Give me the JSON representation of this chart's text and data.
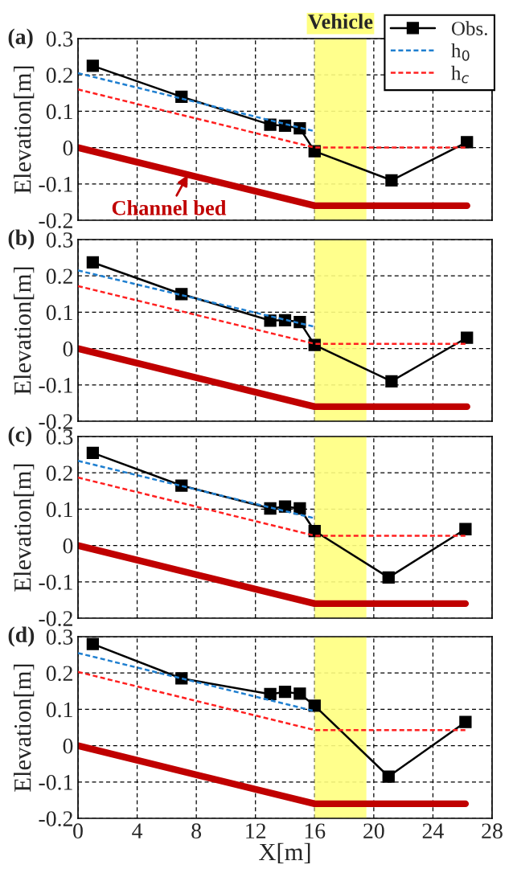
{
  "chart_data": [
    {
      "type": "line",
      "title": "(a)",
      "ylabel": "Elevation[m]",
      "xlim": [
        0,
        28
      ],
      "xticks": [
        0,
        4,
        8,
        12,
        16,
        20,
        24,
        28
      ],
      "ylim": [
        -0.2,
        0.3
      ],
      "yticks": [
        -0.2,
        -0.1,
        0,
        0.1,
        0.2,
        0.3
      ],
      "grid": true,
      "legend": "top right",
      "tick_labels": "y",
      "series": [
        {
          "name": "Obs.",
          "color": "#000000",
          "marker": "square",
          "line_style": "solid",
          "x": [
            1,
            7,
            13,
            14,
            15,
            16,
            21.2,
            26.3
          ],
          "values": [
            0.225,
            0.14,
            0.063,
            0.06,
            0.053,
            -0.01,
            -0.09,
            0.015
          ]
        },
        {
          "name": "h$_{0}$",
          "color": "#1f7fd0",
          "marker": "none",
          "line_style": "dashed",
          "x": [
            0,
            16
          ],
          "values": [
            0.205,
            0.045
          ]
        },
        {
          "name": "h$_{c}$",
          "color": "#ff2020",
          "marker": "none",
          "line_style": "dashed",
          "x": [
            0,
            16,
            26.3
          ],
          "values": [
            0.16,
            0.0,
            0.0
          ]
        },
        {
          "color": "#c00000",
          "marker": "none",
          "line_style": "solid",
          "x": [
            0,
            16,
            26.3
          ],
          "values": [
            0,
            -0.16,
            -0.16
          ]
        }
      ],
      "bands": [
        {
          "axis": "x",
          "from": 16,
          "to": 19.5,
          "label": "Vehicle",
          "color": "#ffff80"
        }
      ],
      "annotations": [
        {
          "text": "Channel bed",
          "x": 7.5,
          "y": -0.07
        }
      ]
    },
    {
      "type": "line",
      "title": "(b)",
      "ylabel": "Elevation[m]",
      "xlim": [
        0,
        28
      ],
      "xticks": [
        0,
        4,
        8,
        12,
        16,
        20,
        24,
        28
      ],
      "ylim": [
        -0.2,
        0.3
      ],
      "yticks": [
        -0.2,
        -0.1,
        0,
        0.1,
        0.2,
        0.3
      ],
      "grid": true,
      "tick_labels": "y",
      "series": [
        {
          "color": "#000000",
          "marker": "square",
          "line_style": "solid",
          "x": [
            1,
            7,
            13,
            14,
            15,
            16,
            21.2,
            26.3
          ],
          "values": [
            0.237,
            0.15,
            0.077,
            0.078,
            0.073,
            0.01,
            -0.09,
            0.03
          ]
        },
        {
          "color": "#1f7fd0",
          "marker": "none",
          "line_style": "dashed",
          "x": [
            0,
            16
          ],
          "values": [
            0.215,
            0.06
          ]
        },
        {
          "color": "#ff2020",
          "marker": "none",
          "line_style": "dashed",
          "x": [
            0,
            16,
            26.3
          ],
          "values": [
            0.172,
            0.013,
            0.013
          ]
        },
        {
          "color": "#c00000",
          "marker": "none",
          "line_style": "solid",
          "x": [
            0,
            16,
            26.3
          ],
          "values": [
            0,
            -0.16,
            -0.16
          ]
        }
      ],
      "bands": [
        {
          "axis": "x",
          "from": 16,
          "to": 19.5,
          "color": "#ffff80"
        }
      ]
    },
    {
      "type": "line",
      "title": "(c)",
      "ylabel": "Elevation[m]",
      "xlim": [
        0,
        28
      ],
      "xticks": [
        0,
        4,
        8,
        12,
        16,
        20,
        24,
        28
      ],
      "ylim": [
        -0.2,
        0.3
      ],
      "yticks": [
        -0.2,
        -0.1,
        0,
        0.1,
        0.2,
        0.3
      ],
      "grid": true,
      "tick_labels": "y",
      "series": [
        {
          "color": "#000000",
          "marker": "square",
          "line_style": "solid",
          "x": [
            1,
            7,
            13,
            14,
            15,
            16,
            21,
            26.2
          ],
          "values": [
            0.255,
            0.165,
            0.102,
            0.107,
            0.102,
            0.04,
            -0.088,
            0.045
          ]
        },
        {
          "color": "#1f7fd0",
          "marker": "none",
          "line_style": "dashed",
          "x": [
            0,
            16
          ],
          "values": [
            0.233,
            0.075
          ]
        },
        {
          "color": "#ff2020",
          "marker": "none",
          "line_style": "dashed",
          "x": [
            0,
            16,
            26.2
          ],
          "values": [
            0.187,
            0.027,
            0.027
          ]
        },
        {
          "color": "#c00000",
          "marker": "none",
          "line_style": "solid",
          "x": [
            0,
            16,
            26.2
          ],
          "values": [
            0,
            -0.16,
            -0.16
          ]
        }
      ],
      "bands": [
        {
          "axis": "x",
          "from": 16,
          "to": 19.5,
          "color": "#ffff80"
        }
      ]
    },
    {
      "type": "line",
      "title": "(d)",
      "xlabel": "X[m]",
      "ylabel": "Elevation[m]",
      "xlim": [
        0,
        28
      ],
      "xticks": [
        0,
        4,
        8,
        12,
        16,
        20,
        24,
        28
      ],
      "ylim": [
        -0.2,
        0.3
      ],
      "yticks": [
        -0.2,
        -0.1,
        0,
        0.1,
        0.2,
        0.3
      ],
      "grid": true,
      "series": [
        {
          "color": "#000000",
          "marker": "square",
          "line_style": "solid",
          "x": [
            1,
            7,
            13,
            14,
            15,
            16,
            21,
            26.2
          ],
          "values": [
            0.28,
            0.185,
            0.142,
            0.148,
            0.143,
            0.11,
            -0.085,
            0.065
          ]
        },
        {
          "color": "#1f7fd0",
          "marker": "none",
          "line_style": "dashed",
          "x": [
            0,
            16
          ],
          "values": [
            0.255,
            0.095
          ]
        },
        {
          "color": "#ff2020",
          "marker": "none",
          "line_style": "dashed",
          "x": [
            0,
            16,
            26.2
          ],
          "values": [
            0.203,
            0.043,
            0.043
          ]
        },
        {
          "color": "#c00000",
          "marker": "none",
          "line_style": "solid",
          "x": [
            0,
            16,
            26.2
          ],
          "values": [
            0,
            -0.16,
            -0.16
          ]
        }
      ],
      "bands": [
        {
          "axis": "x",
          "from": 16,
          "to": 19.5,
          "color": "#ffff80"
        }
      ]
    }
  ]
}
